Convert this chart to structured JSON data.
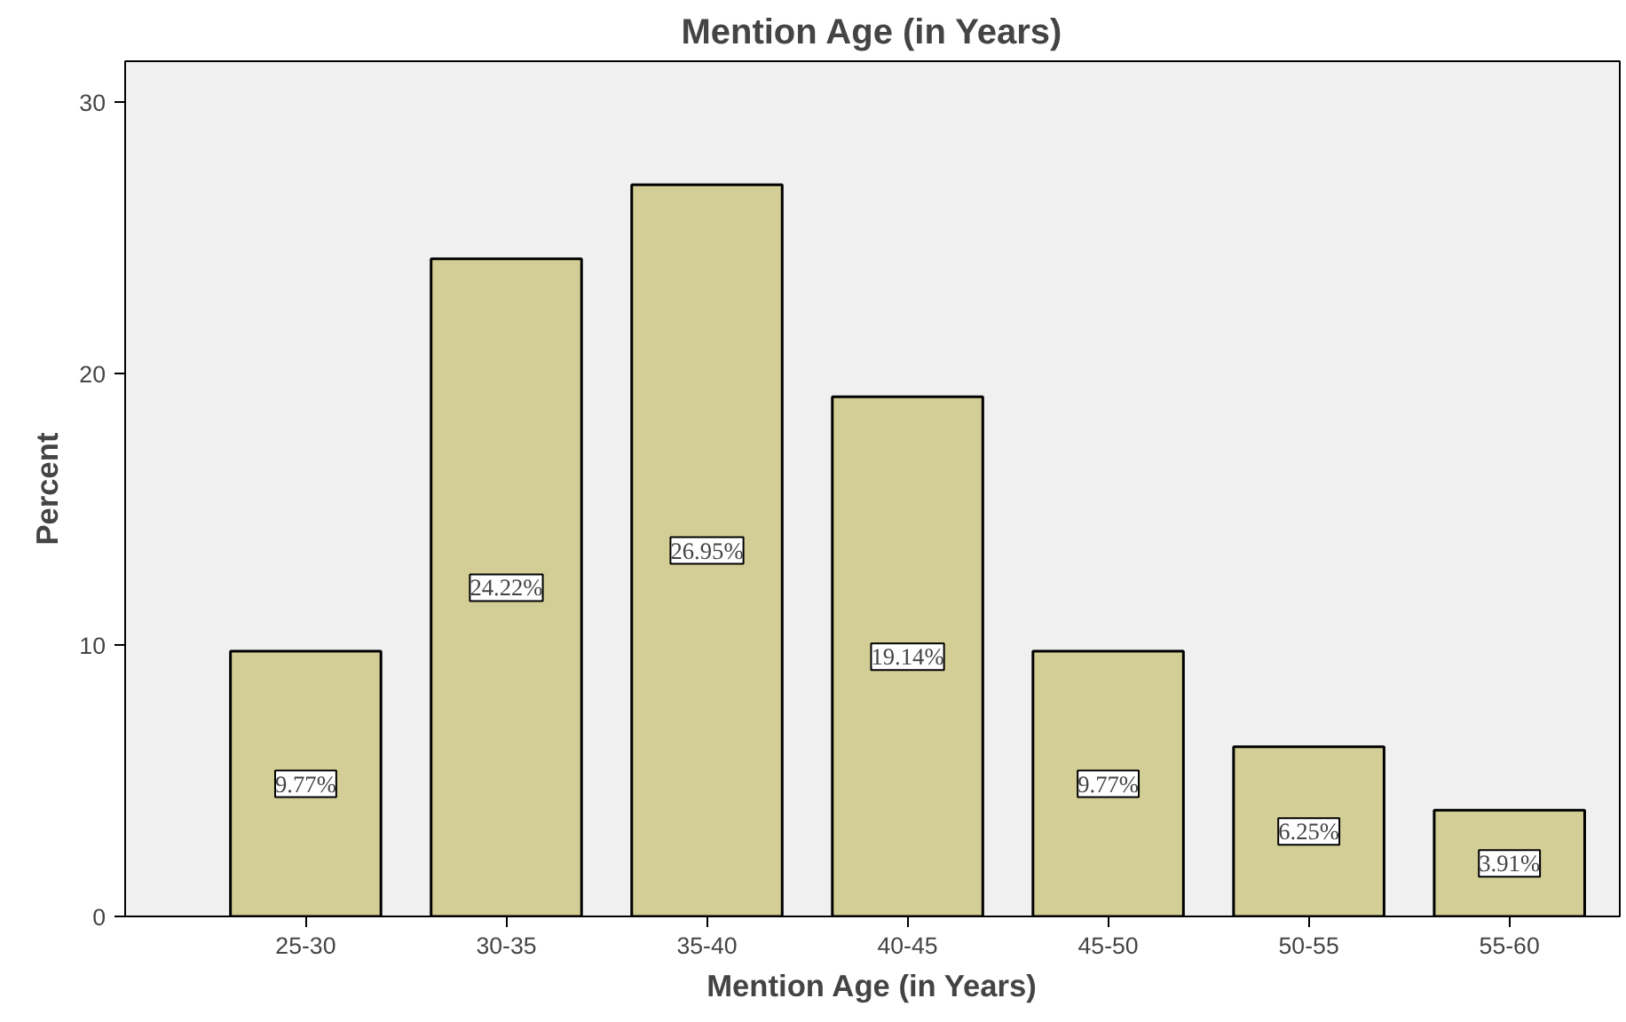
{
  "chart_data": {
    "type": "bar",
    "title": "Mention Age (in Years)",
    "xlabel": "Mention Age (in Years)",
    "ylabel": "Percent",
    "categories": [
      "25-30",
      "30-35",
      "35-40",
      "40-45",
      "45-50",
      "50-55",
      "55-60"
    ],
    "values": [
      9.77,
      24.22,
      26.95,
      19.14,
      9.77,
      6.25,
      3.91
    ],
    "value_labels": [
      "9.77%",
      "24.22%",
      "26.95%",
      "19.14%",
      "9.77%",
      "6.25%",
      "3.91%"
    ],
    "color": "#d3ce96",
    "ylim": [
      0,
      31.5
    ],
    "yticks": [
      0,
      10,
      20,
      30
    ],
    "grid": false
  }
}
